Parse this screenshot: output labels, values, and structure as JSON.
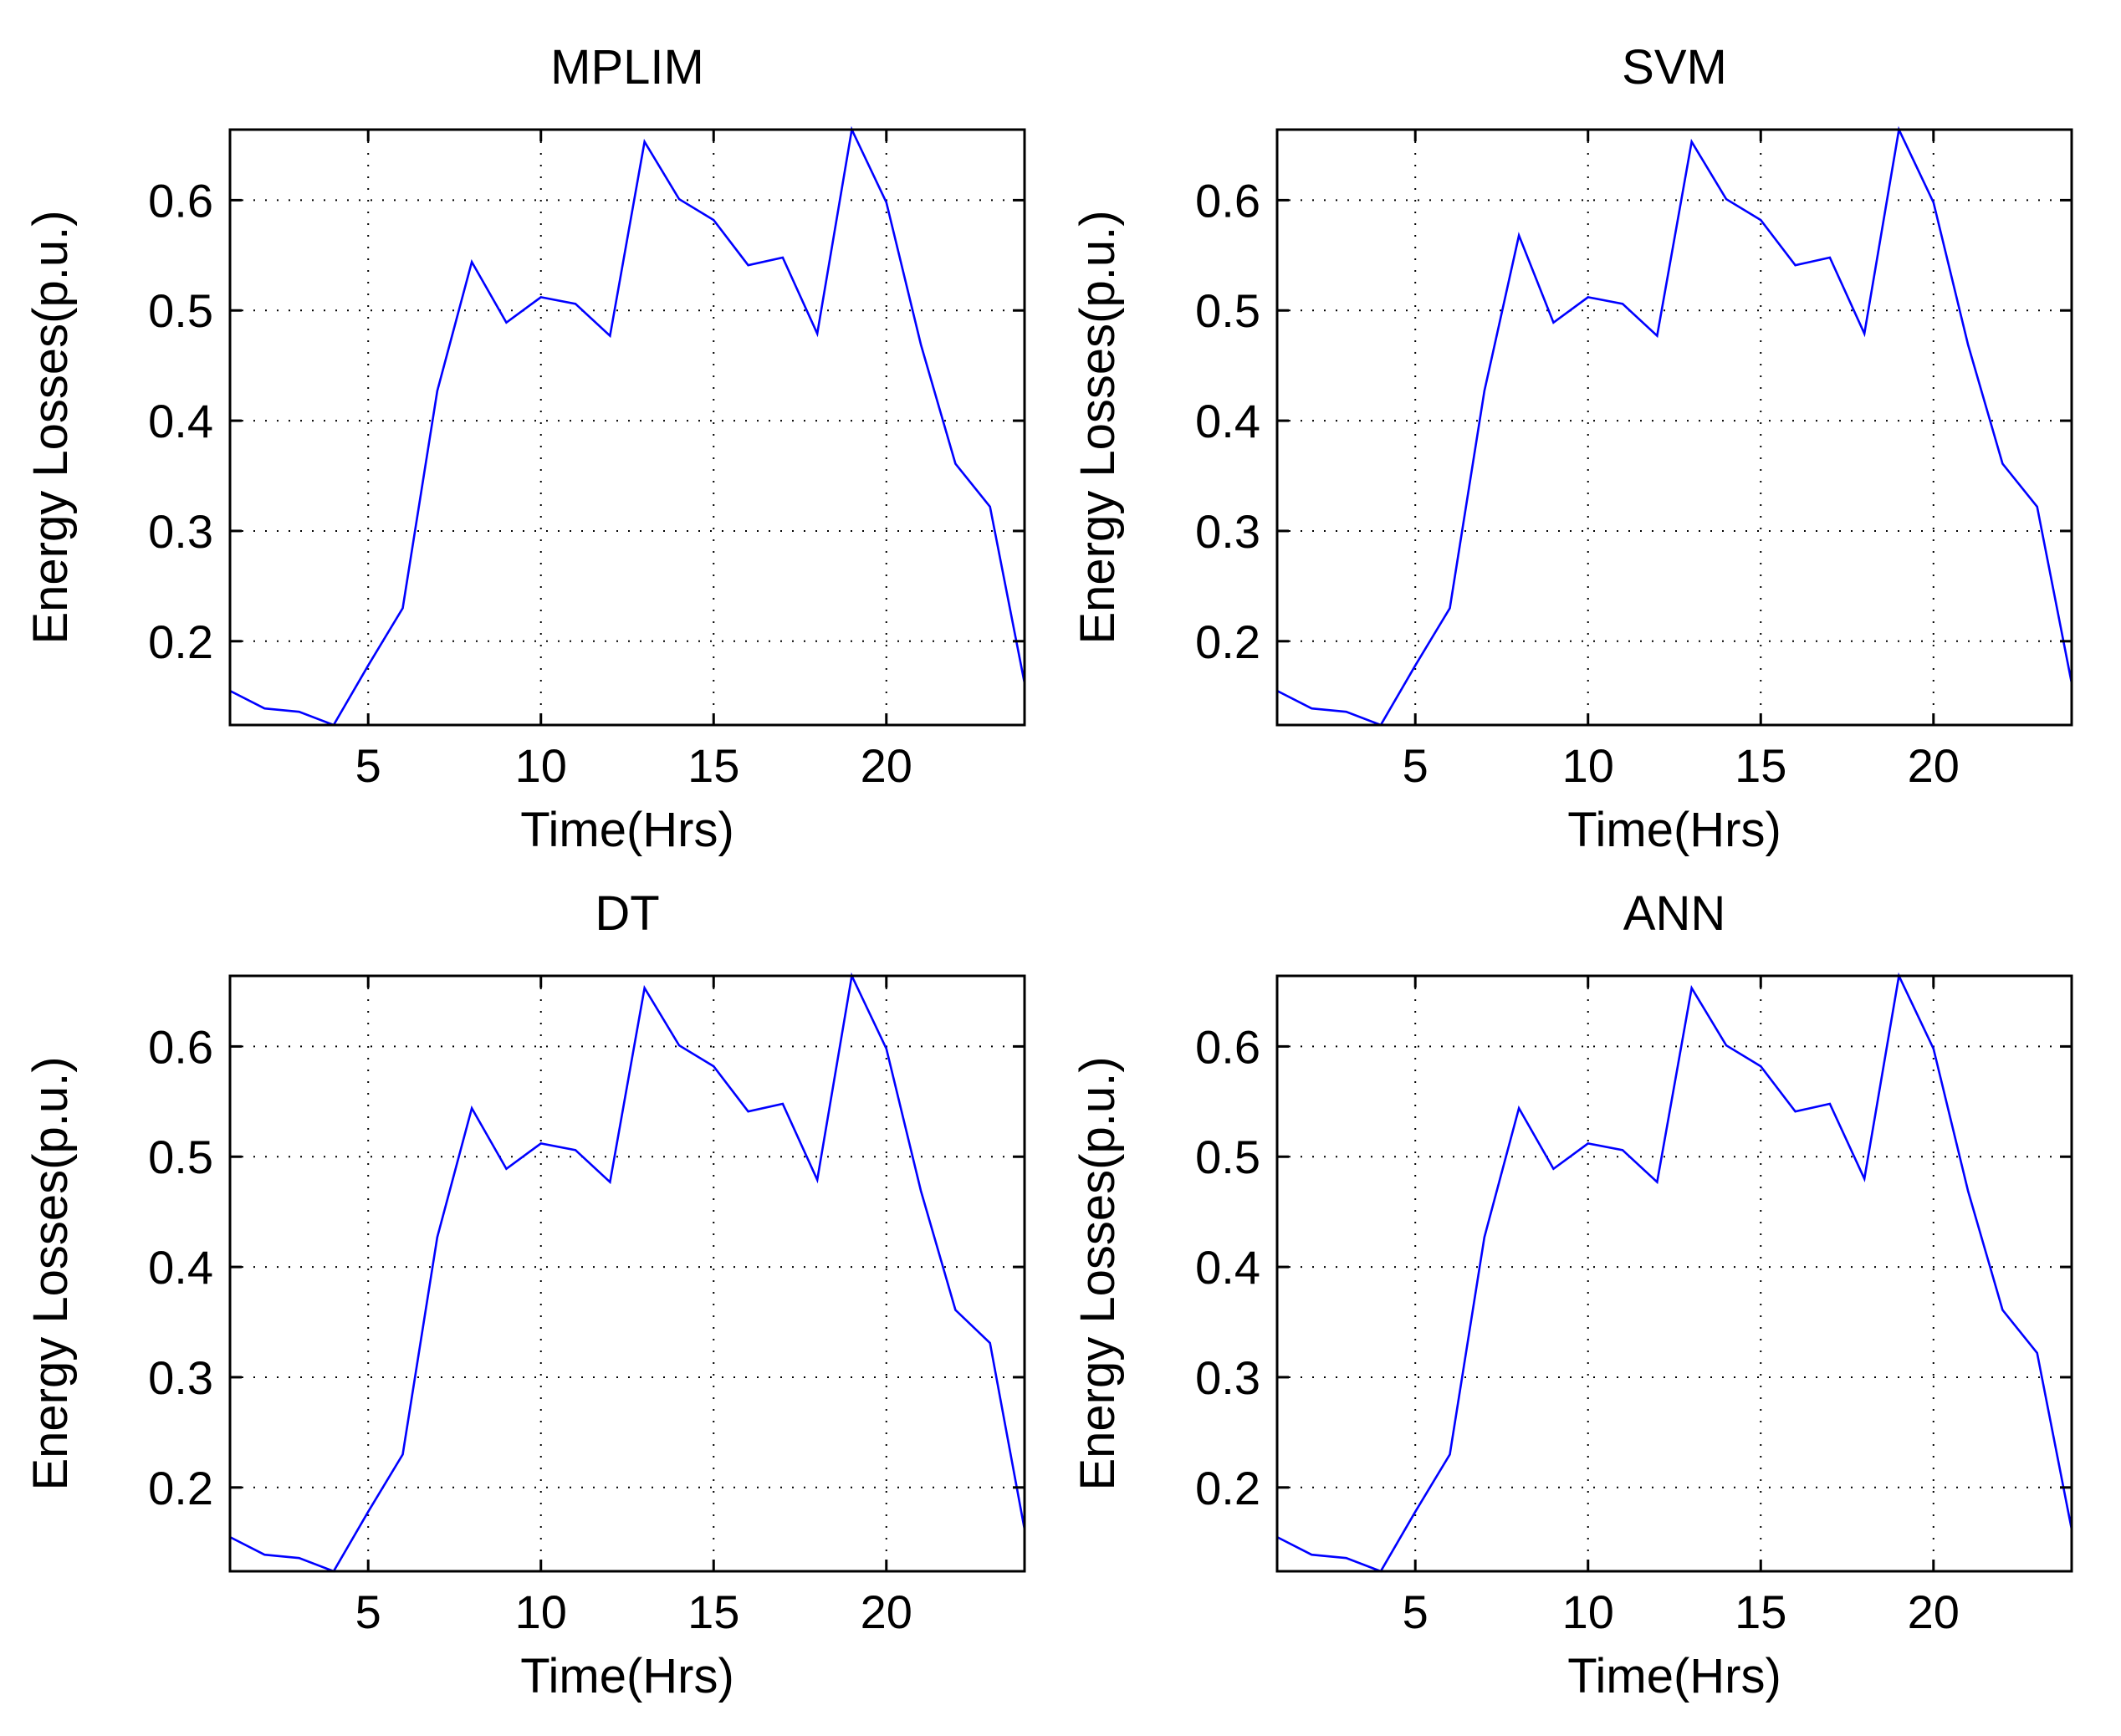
{
  "figure": {
    "line_color": "#0000ff"
  },
  "chart_data": [
    {
      "type": "line",
      "title": "MPLIM",
      "xlabel": "Time(Hrs)",
      "ylabel": "Energy Losses(p.u.)",
      "xlim": [
        1,
        24
      ],
      "ylim": [
        0.124,
        0.664
      ],
      "xticks": [
        5,
        10,
        15,
        20
      ],
      "yticks": [
        0.2,
        0.3,
        0.4,
        0.5,
        0.6
      ],
      "xtick_labels": [
        "5",
        "10",
        "15",
        "20"
      ],
      "ytick_labels": [
        "0.2",
        "0.3",
        "0.4",
        "0.5",
        "0.6"
      ],
      "grid": true,
      "x": [
        1,
        2,
        3,
        4,
        5,
        6,
        7,
        8,
        9,
        10,
        11,
        12,
        13,
        14,
        15,
        16,
        17,
        18,
        19,
        20,
        21,
        22,
        23,
        24
      ],
      "series": [
        {
          "name": "Energy Losses",
          "values": [
            0.155,
            0.139,
            0.136,
            0.124,
            0.178,
            0.23,
            0.427,
            0.544,
            0.489,
            0.512,
            0.506,
            0.477,
            0.653,
            0.601,
            0.582,
            0.541,
            0.548,
            0.479,
            0.664,
            0.598,
            0.469,
            0.361,
            0.322,
            0.162
          ]
        }
      ]
    },
    {
      "type": "line",
      "title": "SVM",
      "xlabel": "Time(Hrs)",
      "ylabel": "Energy Losses(p.u.)",
      "xlim": [
        1,
        24
      ],
      "ylim": [
        0.124,
        0.664
      ],
      "xticks": [
        5,
        10,
        15,
        20
      ],
      "yticks": [
        0.2,
        0.3,
        0.4,
        0.5,
        0.6
      ],
      "xtick_labels": [
        "5",
        "10",
        "15",
        "20"
      ],
      "ytick_labels": [
        "0.2",
        "0.3",
        "0.4",
        "0.5",
        "0.6"
      ],
      "grid": true,
      "x": [
        1,
        2,
        3,
        4,
        5,
        6,
        7,
        8,
        9,
        10,
        11,
        12,
        13,
        14,
        15,
        16,
        17,
        18,
        19,
        20,
        21,
        22,
        23,
        24
      ],
      "series": [
        {
          "name": "Energy Losses",
          "values": [
            0.155,
            0.139,
            0.136,
            0.124,
            0.178,
            0.23,
            0.427,
            0.568,
            0.489,
            0.512,
            0.506,
            0.477,
            0.653,
            0.601,
            0.582,
            0.541,
            0.548,
            0.479,
            0.664,
            0.598,
            0.469,
            0.361,
            0.322,
            0.162
          ]
        }
      ]
    },
    {
      "type": "line",
      "title": "DT",
      "xlabel": "Time(Hrs)",
      "ylabel": "Energy Losses(p.u.)",
      "xlim": [
        1,
        24
      ],
      "ylim": [
        0.124,
        0.664
      ],
      "xticks": [
        5,
        10,
        15,
        20
      ],
      "yticks": [
        0.2,
        0.3,
        0.4,
        0.5,
        0.6
      ],
      "xtick_labels": [
        "5",
        "10",
        "15",
        "20"
      ],
      "ytick_labels": [
        "0.2",
        "0.3",
        "0.4",
        "0.5",
        "0.6"
      ],
      "grid": true,
      "x": [
        1,
        2,
        3,
        4,
        5,
        6,
        7,
        8,
        9,
        10,
        11,
        12,
        13,
        14,
        15,
        16,
        17,
        18,
        19,
        20,
        21,
        22,
        23,
        24
      ],
      "series": [
        {
          "name": "Energy Losses",
          "values": [
            0.155,
            0.139,
            0.136,
            0.124,
            0.178,
            0.23,
            0.427,
            0.544,
            0.489,
            0.512,
            0.506,
            0.477,
            0.653,
            0.601,
            0.582,
            0.541,
            0.548,
            0.479,
            0.664,
            0.598,
            0.469,
            0.361,
            0.331,
            0.162
          ]
        }
      ]
    },
    {
      "type": "line",
      "title": "ANN",
      "xlabel": "Time(Hrs)",
      "ylabel": "Energy Losses(p.u.)",
      "xlim": [
        1,
        24
      ],
      "ylim": [
        0.124,
        0.664
      ],
      "xticks": [
        5,
        10,
        15,
        20
      ],
      "yticks": [
        0.2,
        0.3,
        0.4,
        0.5,
        0.6
      ],
      "xtick_labels": [
        "5",
        "10",
        "15",
        "20"
      ],
      "ytick_labels": [
        "0.2",
        "0.3",
        "0.4",
        "0.5",
        "0.6"
      ],
      "grid": true,
      "x": [
        1,
        2,
        3,
        4,
        5,
        6,
        7,
        8,
        9,
        10,
        11,
        12,
        13,
        14,
        15,
        16,
        17,
        18,
        19,
        20,
        21,
        22,
        23,
        24
      ],
      "series": [
        {
          "name": "Energy Losses",
          "values": [
            0.155,
            0.139,
            0.136,
            0.124,
            0.178,
            0.23,
            0.427,
            0.544,
            0.489,
            0.512,
            0.506,
            0.477,
            0.653,
            0.601,
            0.582,
            0.541,
            0.548,
            0.48,
            0.664,
            0.598,
            0.469,
            0.361,
            0.322,
            0.162
          ]
        }
      ]
    }
  ]
}
